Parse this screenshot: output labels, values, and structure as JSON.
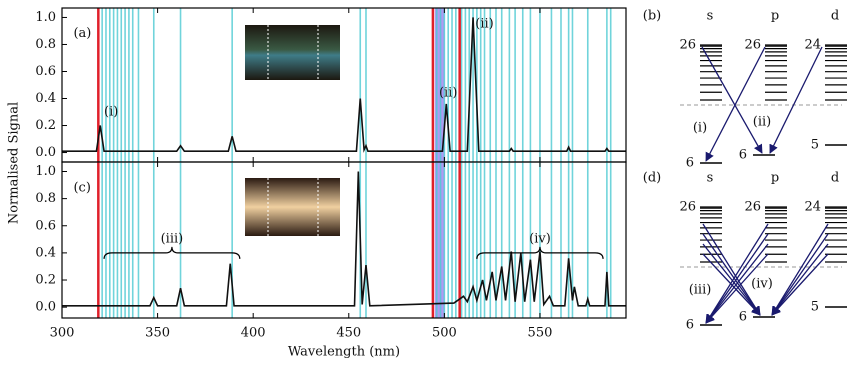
{
  "chart_data": [
    {
      "type": "line",
      "ylabel": "Normalised Signal",
      "color": "#111111",
      "xlim": [
        300,
        595
      ],
      "ylim": [
        -0.07,
        1.07
      ],
      "yticks": [
        {
          "value": 0,
          "label": "0.0"
        },
        {
          "value": 0.2,
          "label": "0.2"
        },
        {
          "value": 0.4,
          "label": "0.4"
        },
        {
          "value": 0.6,
          "label": "0.6"
        },
        {
          "value": 0.8,
          "label": "0.8"
        },
        {
          "value": 1,
          "label": "1.0"
        }
      ],
      "x": [
        300,
        318,
        320,
        322,
        360,
        362,
        364,
        387,
        389,
        391,
        454,
        456,
        458,
        459,
        460,
        499,
        501,
        503,
        512,
        515,
        518,
        534,
        535,
        536,
        564,
        565,
        566,
        584,
        585,
        586,
        595
      ],
      "values": [
        0.01,
        0.01,
        0.2,
        0.01,
        0.01,
        0.05,
        0.01,
        0.01,
        0.12,
        0.01,
        0.01,
        0.4,
        0.02,
        0.05,
        0.01,
        0.01,
        0.36,
        0.01,
        0.01,
        1.0,
        0.01,
        0.01,
        0.03,
        0.01,
        0.01,
        0.04,
        0.01,
        0.01,
        0.03,
        0.01,
        0.01
      ],
      "annotations": [
        {
          "text": "(a)",
          "x": 306,
          "y": 0.88
        },
        {
          "text": "(i)",
          "x": 322,
          "y": 0.3
        },
        {
          "text": "(ii)",
          "x": 502,
          "y": 0.44
        },
        {
          "text": "(ii)",
          "x": 521,
          "y": 0.95
        }
      ],
      "reference_lines": {
        "color": "#4cc9d2",
        "x": [
          321,
          323,
          325,
          327,
          329,
          331,
          333,
          335,
          337,
          340,
          348,
          362,
          389,
          456,
          459,
          496,
          498,
          500,
          502,
          504,
          506,
          509,
          511,
          513,
          515,
          517,
          519,
          521,
          524,
          527,
          530,
          534,
          537,
          541,
          545,
          550,
          556,
          561,
          565,
          567,
          575,
          585,
          587
        ]
      },
      "red_lines": {
        "color": "#e0202a",
        "x": [
          319,
          494,
          508
        ]
      },
      "band": {
        "color": "#9d7ff0",
        "x": [
          495,
          500
        ]
      }
    },
    {
      "type": "line",
      "xlabel": "Wavelength (nm)",
      "color": "#111111",
      "xlim": [
        300,
        595
      ],
      "ylim": [
        -0.08,
        1.07
      ],
      "xticks": [
        300,
        350,
        400,
        450,
        500,
        550
      ],
      "yticks": [
        {
          "value": 0,
          "label": "0.0"
        },
        {
          "value": 0.2,
          "label": "0.2"
        },
        {
          "value": 0.4,
          "label": "0.4"
        },
        {
          "value": 0.6,
          "label": "0.6"
        },
        {
          "value": 0.8,
          "label": "0.8"
        },
        {
          "value": 1,
          "label": "1.0"
        }
      ],
      "x": [
        300,
        346,
        348,
        350,
        360,
        362,
        364,
        386,
        388,
        390,
        453,
        455,
        457,
        459,
        461,
        505,
        510,
        512,
        515,
        517,
        520,
        522,
        525,
        527,
        530,
        532,
        535,
        537,
        540,
        542,
        545,
        547,
        550,
        552,
        555,
        557,
        563,
        565,
        567,
        568,
        570,
        574,
        575,
        576,
        584,
        585,
        586,
        595
      ],
      "values": [
        0.01,
        0.01,
        0.07,
        0.01,
        0.01,
        0.14,
        0.01,
        0.01,
        0.32,
        0.01,
        0.01,
        1.0,
        0.02,
        0.31,
        0.01,
        0.03,
        0.08,
        0.04,
        0.15,
        0.05,
        0.2,
        0.05,
        0.26,
        0.05,
        0.3,
        0.05,
        0.41,
        0.04,
        0.4,
        0.04,
        0.35,
        0.04,
        0.41,
        0.02,
        0.08,
        0.01,
        0.01,
        0.36,
        0.05,
        0.15,
        0.01,
        0.01,
        0.06,
        0.01,
        0.01,
        0.26,
        0.01,
        0.01
      ],
      "annotations": [
        {
          "text": "(c)",
          "x": 306,
          "y": 0.88
        }
      ],
      "braces": [
        {
          "label": "(iii)",
          "x": [
            322,
            393
          ],
          "y": 0.4
        },
        {
          "label": "(iv)",
          "x": [
            517,
            583
          ],
          "y": 0.4
        }
      ]
    }
  ],
  "diagrams": [
    {
      "label": "(b)",
      "columns": [
        {
          "name": "s",
          "n": "26"
        },
        {
          "name": "p",
          "n": "26"
        },
        {
          "name": "d",
          "n": "24"
        }
      ],
      "lower": [
        "6",
        "6",
        "5"
      ],
      "transitions": [
        "(i)",
        "(ii)"
      ]
    },
    {
      "label": "(d)",
      "columns": [
        {
          "name": "s",
          "n": "26"
        },
        {
          "name": "p",
          "n": "26"
        },
        {
          "name": "d",
          "n": "24"
        }
      ],
      "lower": [
        "6",
        "6",
        "5"
      ],
      "transitions": [
        "(iii)",
        "(iv)"
      ]
    }
  ]
}
